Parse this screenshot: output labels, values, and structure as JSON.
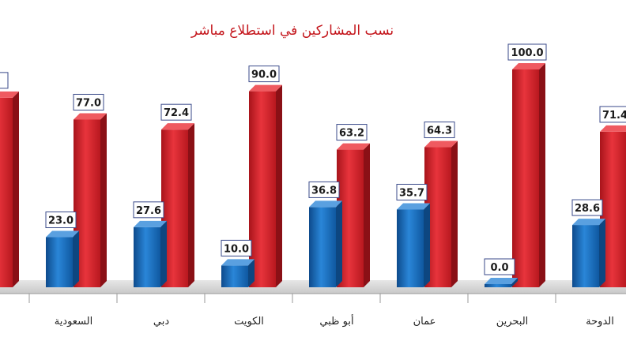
{
  "colors": {
    "blue": "#1a6fc0",
    "blue_dark": "#0d4680",
    "blue_light": "#5aa0e0",
    "red": "#d3202a",
    "red_dark": "#8a1016",
    "red_light": "#ef5a60",
    "title": "#c4161c"
  },
  "chart_data": {
    "type": "bar",
    "title": "نسب المشاركين في استطلاع مباشر",
    "ylim": [
      0,
      100
    ],
    "grid": false,
    "categories": [
      "",
      "السعودية",
      "دبي",
      "الكويت",
      "أبو ظبي",
      "عمان",
      "البحرين",
      "الدوحة"
    ],
    "series": [
      {
        "values": [
          null,
          23.0,
          27.6,
          10.0,
          36.8,
          35.7,
          0.0,
          28.6
        ]
      },
      {
        "values": [
          null,
          77.0,
          72.4,
          90.0,
          63.2,
          64.3,
          100.0,
          71.4
        ]
      }
    ],
    "cut_off_labels": {
      "red": "2"
    }
  }
}
